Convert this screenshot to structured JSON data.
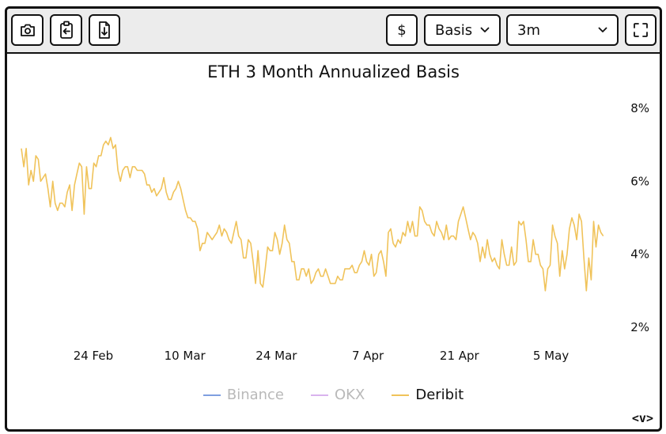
{
  "toolbar": {
    "camera_icon": "camera-icon",
    "clipboard_icon": "clipboard-icon",
    "download_icon": "download-icon",
    "currency_label": "$",
    "metric_select": "Basis",
    "range_select": "3m",
    "fullscreen_icon": "fullscreen-icon"
  },
  "colors": {
    "binance": "#7f9fe0",
    "okx": "#d9b3ee",
    "deribit": "#f0c35a",
    "frame": "#111111",
    "toolbar_bg": "#ececec"
  },
  "chart_data": {
    "type": "line",
    "title": "ETH 3 Month Annualized Basis",
    "xlabel": "",
    "ylabel": "",
    "x_ticks": [
      "24 Feb",
      "10 Mar",
      "24 Mar",
      "7 Apr",
      "21 Apr",
      "5 May"
    ],
    "y_ticks": [
      "8%",
      "6%",
      "4%",
      "2%"
    ],
    "ylim": [
      2,
      8
    ],
    "xlim": [
      "2025-02-13",
      "2025-05-18"
    ],
    "grid": false,
    "legend": "bottom-center",
    "series": [
      {
        "name": "Binance",
        "hidden": true,
        "values": []
      },
      {
        "name": "OKX",
        "hidden": true,
        "values": []
      },
      {
        "name": "Deribit",
        "hidden": false,
        "x_start": "2025-02-13",
        "x_end": "2025-05-13",
        "values": [
          6.9,
          6.4,
          6.9,
          5.9,
          6.3,
          6.0,
          6.7,
          6.6,
          6.0,
          6.1,
          6.2,
          5.8,
          5.3,
          6.0,
          5.4,
          5.2,
          5.4,
          5.4,
          5.3,
          5.7,
          5.9,
          5.2,
          5.9,
          6.2,
          6.5,
          6.4,
          5.1,
          6.4,
          5.8,
          5.8,
          6.5,
          6.4,
          6.7,
          6.7,
          7.0,
          7.1,
          7.0,
          7.2,
          6.9,
          7.0,
          6.3,
          6.0,
          6.3,
          6.4,
          6.4,
          6.1,
          6.4,
          6.4,
          6.3,
          6.3,
          6.3,
          6.2,
          5.9,
          5.9,
          5.7,
          5.8,
          5.6,
          5.7,
          5.8,
          6.1,
          5.7,
          5.5,
          5.5,
          5.7,
          5.8,
          6.0,
          5.8,
          5.5,
          5.2,
          5.0,
          5.0,
          4.9,
          4.9,
          4.7,
          4.1,
          4.3,
          4.3,
          4.6,
          4.5,
          4.4,
          4.5,
          4.6,
          4.8,
          4.5,
          4.7,
          4.6,
          4.4,
          4.3,
          4.6,
          4.9,
          4.5,
          4.4,
          3.9,
          3.9,
          4.4,
          4.3,
          3.8,
          3.2,
          4.1,
          3.2,
          3.1,
          3.6,
          4.2,
          4.1,
          4.1,
          4.6,
          4.4,
          4.0,
          4.3,
          4.8,
          4.4,
          4.3,
          3.8,
          3.8,
          3.3,
          3.3,
          3.6,
          3.6,
          3.4,
          3.6,
          3.2,
          3.3,
          3.5,
          3.6,
          3.4,
          3.4,
          3.6,
          3.4,
          3.2,
          3.2,
          3.2,
          3.4,
          3.3,
          3.3,
          3.6,
          3.6,
          3.6,
          3.7,
          3.5,
          3.5,
          3.7,
          3.8,
          4.1,
          3.8,
          3.7,
          4.0,
          3.4,
          3.5,
          4.0,
          4.1,
          3.8,
          3.4,
          4.6,
          4.7,
          4.3,
          4.2,
          4.4,
          4.3,
          4.6,
          4.5,
          4.9,
          4.6,
          4.9,
          4.5,
          4.5,
          5.3,
          5.2,
          4.9,
          4.8,
          4.8,
          4.6,
          4.5,
          4.9,
          4.7,
          4.6,
          4.4,
          4.8,
          4.4,
          4.5,
          4.5,
          4.4,
          4.9,
          5.1,
          5.3,
          5.0,
          4.7,
          4.4,
          4.6,
          4.5,
          4.3,
          3.8,
          4.2,
          3.9,
          4.4,
          4.0,
          3.8,
          3.9,
          3.7,
          3.6,
          4.4,
          4.0,
          3.7,
          3.7,
          4.2,
          3.7,
          3.8,
          4.9,
          4.8,
          4.9,
          4.4,
          3.8,
          3.8,
          4.4,
          4.0,
          4.0,
          3.7,
          3.6,
          3.0,
          3.6,
          3.7,
          4.8,
          4.5,
          4.3,
          3.4,
          4.1,
          3.6,
          4.0,
          4.7,
          5.0,
          4.8,
          4.4,
          5.1,
          4.9,
          3.9,
          3.0,
          3.9,
          3.3,
          4.9,
          4.2,
          4.8,
          4.6,
          4.5
        ]
      }
    ]
  }
}
